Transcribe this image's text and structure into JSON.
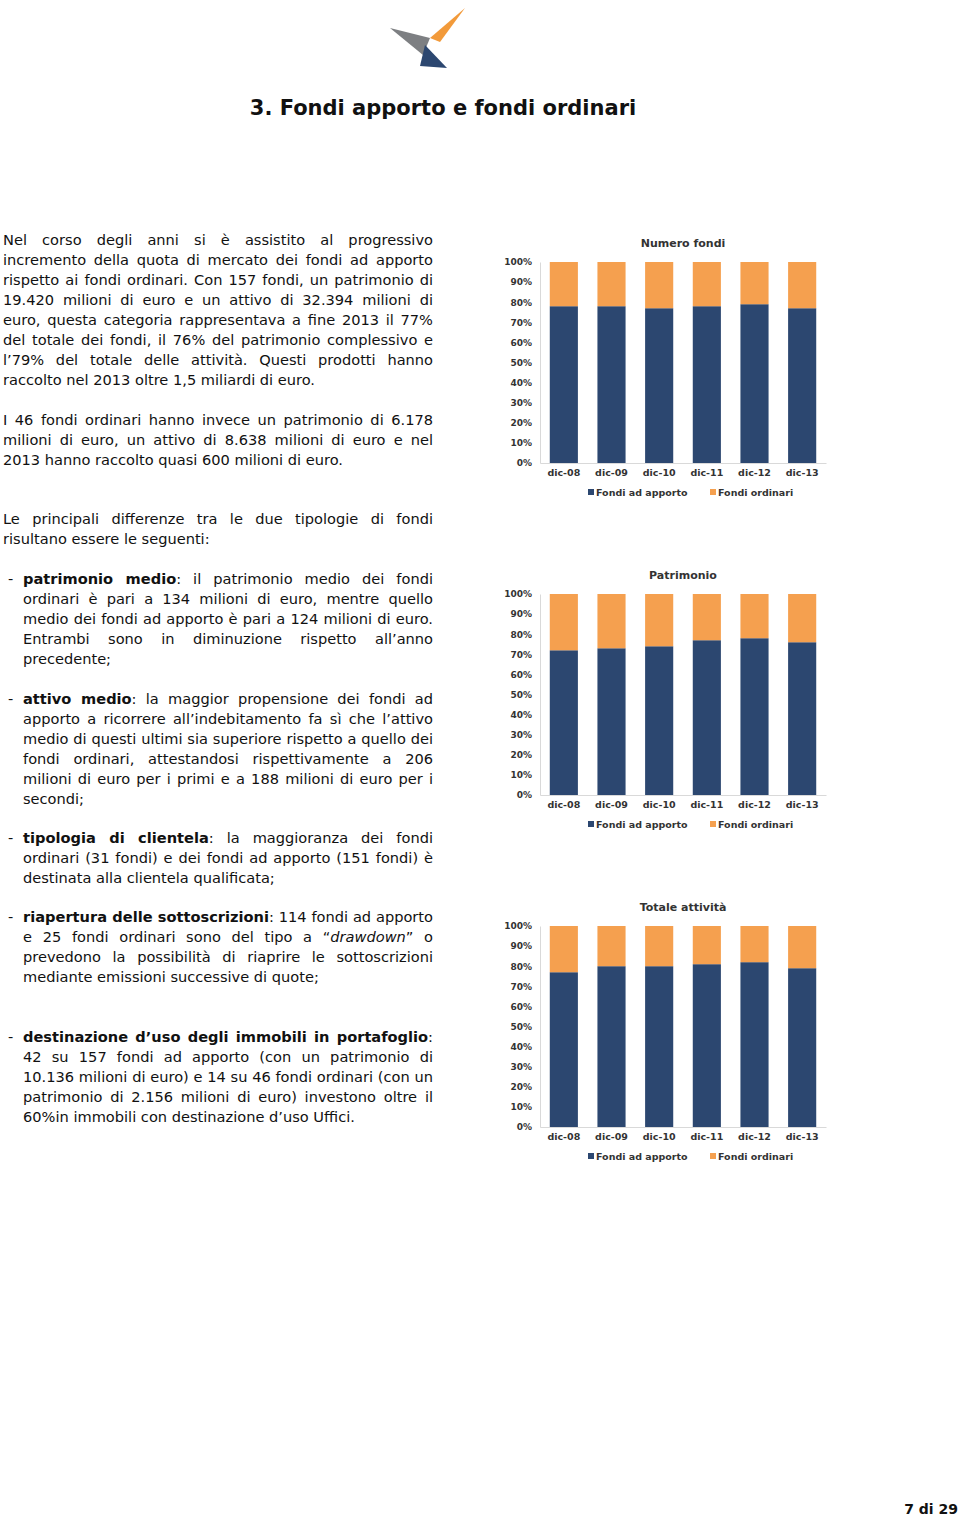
{
  "header": {
    "title": "3. Fondi apporto e fondi ordinari"
  },
  "paragraphs": [
    "Nel corso degli anni si è assistito al progressivo incremento della quota di mercato dei fondi ad apporto rispetto ai fondi ordinari. Con 157 fondi, un patrimonio di 19.420 milioni di euro e un attivo di 32.394 milioni di euro, questa categoria rappresentava a fine 2013 il 77% del totale dei fondi, il 76% del patrimonio complessivo e l’79% del totale delle attività. Questi prodotti hanno raccolto nel 2013 oltre 1,5 miliardi di euro.",
    "I 46 fondi ordinari hanno invece un patrimonio di 6.178 milioni di euro, un attivo di 8.638 milioni di euro e nel 2013 hanno raccolto quasi 600 milioni di euro.",
    "Le principali differenze tra le due tipologie di fondi risultano essere le seguenti:"
  ],
  "list": {
    "marker": "-",
    "items": [
      {
        "term": "patrimonio medio",
        "segments": [
          {
            "text": ": il patrimonio medio dei fondi ordinari è pari a 134 milioni di euro, mentre quello medio dei fondi ad apporto è pari a 124 milioni di euro. Entrambi sono in diminuzione rispetto all’anno precedente;",
            "style": "normal"
          }
        ]
      },
      {
        "term": "attivo medio",
        "segments": [
          {
            "text": ": la maggior propensione dei fondi ad apporto a ricorrere all’indebitamento fa sì che l’attivo medio di questi ultimi sia superiore rispetto a quello dei fondi ordinari, attestandosi rispettivamente a 206 milioni di euro per i primi e a 188 milioni di euro per i secondi;",
            "style": "normal"
          }
        ]
      },
      {
        "term": "tipologia di clientela",
        "segments": [
          {
            "text": ": la maggioranza dei fondi ordinari (31 fondi) e dei fondi ad apporto (151 fondi) è destinata alla clientela qualificata;",
            "style": "normal"
          }
        ]
      },
      {
        "term": "riapertura delle sottoscrizioni",
        "segments": [
          {
            "text": ": 114 fondi ad apporto e 25 fondi ordinari sono del tipo a “",
            "style": "normal"
          },
          {
            "text": "drawdown",
            "style": "italic"
          },
          {
            "text": "” o prevedono la possibilità di riaprire le sottoscrizioni mediante emissioni successive di quote;",
            "style": "normal"
          }
        ]
      },
      {
        "term": "destinazione d’uso degli immobili in portafoglio",
        "segments": [
          {
            "text": ": 42 su 157 fondi ad apporto (con un patrimonio di 10.136 milioni di euro) e 14 su 46 fondi ordinari (con un patrimonio di 2.156 milioni di euro) investono oltre il 60%in immobili con destinazione d’uso Uffici.",
            "style": "normal"
          }
        ]
      }
    ]
  },
  "chart_data": [
    {
      "type": "bar",
      "stacked": true,
      "title": "Numero fondi",
      "categories": [
        "dic-08",
        "dic-09",
        "dic-10",
        "dic-11",
        "dic-12",
        "dic-13"
      ],
      "series": [
        {
          "name": "Fondi ad apporto",
          "color": "#2c4770",
          "values": [
            78,
            78,
            77,
            78,
            79,
            77
          ]
        },
        {
          "name": "Fondi ordinari",
          "color": "#f5a04f",
          "values": [
            22,
            22,
            23,
            22,
            21,
            23
          ]
        }
      ],
      "ylim": [
        0,
        100
      ],
      "yticks": [
        {
          "value": 0,
          "label": "0%"
        },
        {
          "value": 10,
          "label": "10%"
        },
        {
          "value": 20,
          "label": "20%"
        },
        {
          "value": 30,
          "label": "30%"
        },
        {
          "value": 40,
          "label": "40%"
        },
        {
          "value": 50,
          "label": "50%"
        },
        {
          "value": 60,
          "label": "60%"
        },
        {
          "value": 70,
          "label": "70%"
        },
        {
          "value": 80,
          "label": "80%"
        },
        {
          "value": 90,
          "label": "90%"
        },
        {
          "value": 100,
          "label": "100%"
        }
      ],
      "grid": false,
      "legend": "bottom"
    },
    {
      "type": "bar",
      "stacked": true,
      "title": "Patrimonio",
      "categories": [
        "dic-08",
        "dic-09",
        "dic-10",
        "dic-11",
        "dic-12",
        "dic-13"
      ],
      "series": [
        {
          "name": "Fondi ad apporto",
          "color": "#2c4770",
          "values": [
            72,
            73,
            74,
            77,
            78,
            76
          ]
        },
        {
          "name": "Fondi ordinari",
          "color": "#f5a04f",
          "values": [
            28,
            27,
            26,
            23,
            22,
            24
          ]
        }
      ],
      "ylim": [
        0,
        100
      ],
      "yticks": [
        {
          "value": 0,
          "label": "0%"
        },
        {
          "value": 10,
          "label": "10%"
        },
        {
          "value": 20,
          "label": "20%"
        },
        {
          "value": 30,
          "label": "30%"
        },
        {
          "value": 40,
          "label": "40%"
        },
        {
          "value": 50,
          "label": "50%"
        },
        {
          "value": 60,
          "label": "60%"
        },
        {
          "value": 70,
          "label": "70%"
        },
        {
          "value": 80,
          "label": "80%"
        },
        {
          "value": 90,
          "label": "90%"
        },
        {
          "value": 100,
          "label": "100%"
        }
      ],
      "grid": false,
      "legend": "bottom"
    },
    {
      "type": "bar",
      "stacked": true,
      "title": "Totale attività",
      "categories": [
        "dic-08",
        "dic-09",
        "dic-10",
        "dic-11",
        "dic-12",
        "dic-13"
      ],
      "series": [
        {
          "name": "Fondi ad apporto",
          "color": "#2c4770",
          "values": [
            77,
            80,
            80,
            81,
            82,
            79
          ]
        },
        {
          "name": "Fondi ordinari",
          "color": "#f5a04f",
          "values": [
            23,
            20,
            20,
            19,
            18,
            21
          ]
        }
      ],
      "ylim": [
        0,
        100
      ],
      "yticks": [
        {
          "value": 0,
          "label": "0%"
        },
        {
          "value": 10,
          "label": "10%"
        },
        {
          "value": 20,
          "label": "20%"
        },
        {
          "value": 30,
          "label": "30%"
        },
        {
          "value": 40,
          "label": "40%"
        },
        {
          "value": 50,
          "label": "50%"
        },
        {
          "value": 60,
          "label": "60%"
        },
        {
          "value": 70,
          "label": "70%"
        },
        {
          "value": 80,
          "label": "80%"
        },
        {
          "value": 90,
          "label": "90%"
        },
        {
          "value": 100,
          "label": "100%"
        }
      ],
      "grid": false,
      "legend": "bottom"
    }
  ],
  "footer": {
    "page": "7 di 29"
  }
}
